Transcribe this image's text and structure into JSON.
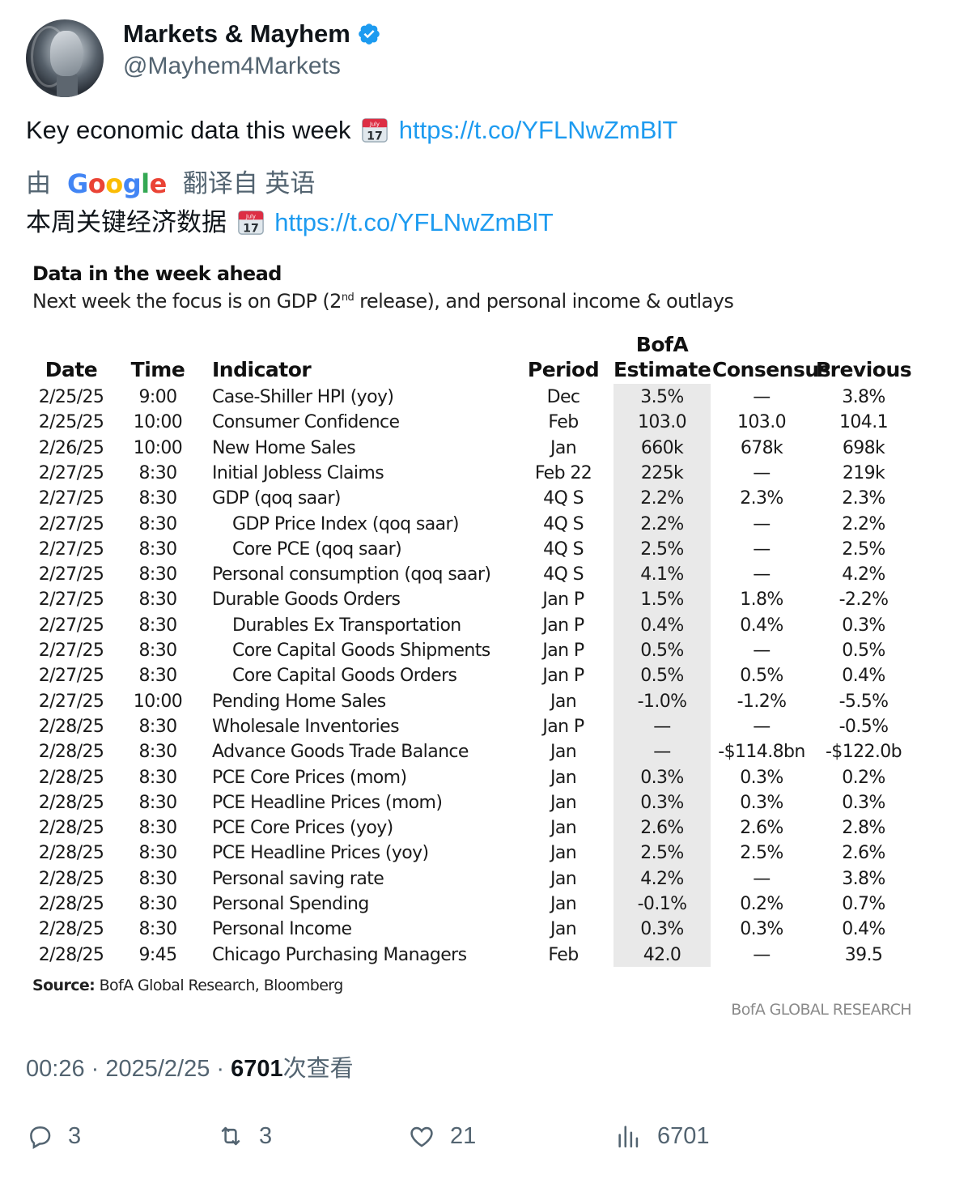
{
  "author": {
    "name": "Markets & Mayhem",
    "handle": "@Mayhem4Markets"
  },
  "tweet": {
    "text": "Key economic data this week",
    "link": "https://t.co/YFLNwZmBlT",
    "emoji_icon": "calendar-icon"
  },
  "translation": {
    "prefix": "由",
    "provider": "Google",
    "suffix": "翻译自 英语",
    "text": "本周关键经济数据",
    "link": "https://t.co/YFLNwZmBlT"
  },
  "media": {
    "title": "Data in the week ahead",
    "subtitle_before": "Next week the focus is on GDP (2",
    "subtitle_sup": "nd",
    "subtitle_after": " release), and personal income & outlays",
    "headers": {
      "date": "Date",
      "time": "Time",
      "indicator": "Indicator",
      "period": "Period",
      "estimate_top": "BofA",
      "estimate": "Estimate",
      "consensus": "Consensus",
      "previous": "Previous"
    },
    "rows": [
      {
        "date": "2/25/25",
        "time": "9:00",
        "indicator": "Case-Shiller HPI (yoy)",
        "indent": false,
        "period": "Dec",
        "estimate": "3.5%",
        "consensus": "—",
        "previous": "3.8%"
      },
      {
        "date": "2/25/25",
        "time": "10:00",
        "indicator": "Consumer Confidence",
        "indent": false,
        "period": "Feb",
        "estimate": "103.0",
        "consensus": "103.0",
        "previous": "104.1"
      },
      {
        "date": "2/26/25",
        "time": "10:00",
        "indicator": "New Home Sales",
        "indent": false,
        "period": "Jan",
        "estimate": "660k",
        "consensus": "678k",
        "previous": "698k"
      },
      {
        "date": "2/27/25",
        "time": "8:30",
        "indicator": "Initial Jobless Claims",
        "indent": false,
        "period": "Feb 22",
        "estimate": "225k",
        "consensus": "—",
        "previous": "219k"
      },
      {
        "date": "2/27/25",
        "time": "8:30",
        "indicator": "GDP (qoq saar)",
        "indent": false,
        "period": "4Q S",
        "estimate": "2.2%",
        "consensus": "2.3%",
        "previous": "2.3%"
      },
      {
        "date": "2/27/25",
        "time": "8:30",
        "indicator": "GDP Price Index (qoq saar)",
        "indent": true,
        "period": "4Q S",
        "estimate": "2.2%",
        "consensus": "—",
        "previous": "2.2%"
      },
      {
        "date": "2/27/25",
        "time": "8:30",
        "indicator": "Core PCE (qoq saar)",
        "indent": true,
        "period": "4Q S",
        "estimate": "2.5%",
        "consensus": "—",
        "previous": "2.5%"
      },
      {
        "date": "2/27/25",
        "time": "8:30",
        "indicator": "Personal consumption (qoq saar)",
        "indent": false,
        "period": "4Q S",
        "estimate": "4.1%",
        "consensus": "—",
        "previous": "4.2%"
      },
      {
        "date": "2/27/25",
        "time": "8:30",
        "indicator": "Durable Goods Orders",
        "indent": false,
        "period": "Jan P",
        "estimate": "1.5%",
        "consensus": "1.8%",
        "previous": "-2.2%"
      },
      {
        "date": "2/27/25",
        "time": "8:30",
        "indicator": "Durables Ex Transportation",
        "indent": true,
        "period": "Jan P",
        "estimate": "0.4%",
        "consensus": "0.4%",
        "previous": "0.3%"
      },
      {
        "date": "2/27/25",
        "time": "8:30",
        "indicator": "Core Capital Goods Shipments",
        "indent": true,
        "period": "Jan P",
        "estimate": "0.5%",
        "consensus": "—",
        "previous": "0.5%"
      },
      {
        "date": "2/27/25",
        "time": "8:30",
        "indicator": "Core Capital Goods Orders",
        "indent": true,
        "period": "Jan P",
        "estimate": "0.5%",
        "consensus": "0.5%",
        "previous": "0.4%"
      },
      {
        "date": "2/27/25",
        "time": "10:00",
        "indicator": "Pending Home Sales",
        "indent": false,
        "period": "Jan",
        "estimate": "-1.0%",
        "consensus": "-1.2%",
        "previous": "-5.5%"
      },
      {
        "date": "2/28/25",
        "time": "8:30",
        "indicator": "Wholesale Inventories",
        "indent": false,
        "period": "Jan P",
        "estimate": "—",
        "consensus": "—",
        "previous": "-0.5%"
      },
      {
        "date": "2/28/25",
        "time": "8:30",
        "indicator": "Advance Goods Trade Balance",
        "indent": false,
        "period": "Jan",
        "estimate": "—",
        "consensus": "-$114.8bn",
        "previous": "-$122.0b"
      },
      {
        "date": "2/28/25",
        "time": "8:30",
        "indicator": "PCE Core Prices (mom)",
        "indent": false,
        "period": "Jan",
        "estimate": "0.3%",
        "consensus": "0.3%",
        "previous": "0.2%"
      },
      {
        "date": "2/28/25",
        "time": "8:30",
        "indicator": "PCE Headline Prices (mom)",
        "indent": false,
        "period": "Jan",
        "estimate": "0.3%",
        "consensus": "0.3%",
        "previous": "0.3%"
      },
      {
        "date": "2/28/25",
        "time": "8:30",
        "indicator": "PCE Core Prices (yoy)",
        "indent": false,
        "period": "Jan",
        "estimate": "2.6%",
        "consensus": "2.6%",
        "previous": "2.8%"
      },
      {
        "date": "2/28/25",
        "time": "8:30",
        "indicator": "PCE Headline Prices (yoy)",
        "indent": false,
        "period": "Jan",
        "estimate": "2.5%",
        "consensus": "2.5%",
        "previous": "2.6%"
      },
      {
        "date": "2/28/25",
        "time": "8:30",
        "indicator": "Personal saving rate",
        "indent": false,
        "period": "Jan",
        "estimate": "4.2%",
        "consensus": "—",
        "previous": "3.8%"
      },
      {
        "date": "2/28/25",
        "time": "8:30",
        "indicator": "Personal Spending",
        "indent": false,
        "period": "Jan",
        "estimate": "-0.1%",
        "consensus": "0.2%",
        "previous": "0.7%"
      },
      {
        "date": "2/28/25",
        "time": "8:30",
        "indicator": "Personal Income",
        "indent": false,
        "period": "Jan",
        "estimate": "0.3%",
        "consensus": "0.3%",
        "previous": "0.4%"
      },
      {
        "date": "2/28/25",
        "time": "9:45",
        "indicator": "Chicago Purchasing Managers",
        "indent": false,
        "period": "Feb",
        "estimate": "42.0",
        "consensus": "—",
        "previous": "39.5"
      }
    ],
    "source_label": "Source:",
    "source_text": " BofA Global Research, Bloomberg",
    "brand": "BofA GLOBAL RESEARCH"
  },
  "meta": {
    "time": "00:26",
    "separator": " · ",
    "date": "2025/2/25",
    "views_count": "6701",
    "views_label": "次查看"
  },
  "actions": {
    "replies": "3",
    "retweets": "3",
    "likes": "21",
    "views": "6701"
  },
  "colors": {
    "link": "#1d9bf0",
    "muted": "#536471",
    "verified": "#1d9bf0",
    "estimate_shade": "#e9e9e9"
  }
}
